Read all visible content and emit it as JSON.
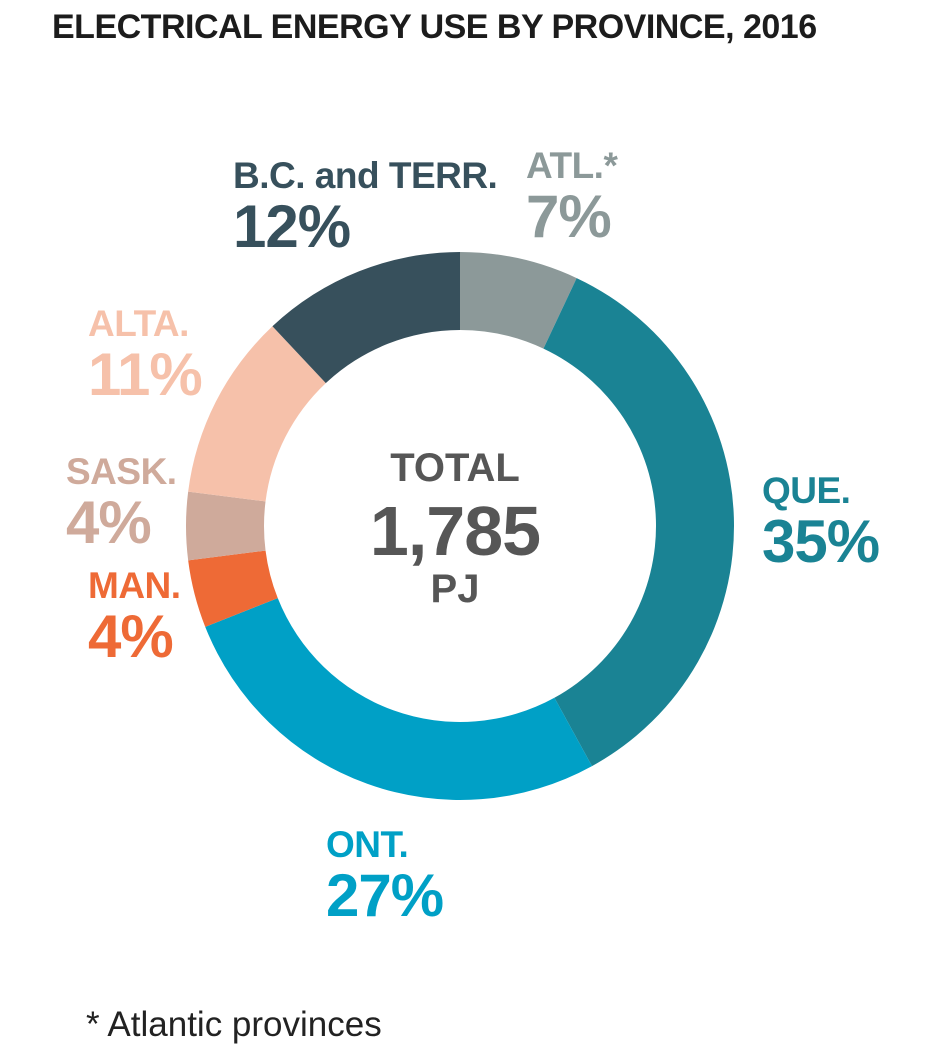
{
  "chart_data": {
    "type": "pie",
    "title": "ELECTRICAL ENERGY USE BY PROVINCE, 2016",
    "center": {
      "label": "TOTAL",
      "value": "1,785",
      "unit": "PJ"
    },
    "slices": [
      {
        "key": "atl",
        "label": "ATL.*",
        "value": 7,
        "value_label": "7%",
        "color": "#8c9999"
      },
      {
        "key": "que",
        "label": "QUE.",
        "value": 35,
        "value_label": "35%",
        "color": "#1a8394"
      },
      {
        "key": "ont",
        "label": "ONT.",
        "value": 27,
        "value_label": "27%",
        "color": "#00a0c6"
      },
      {
        "key": "man",
        "label": "MAN.",
        "value": 4,
        "value_label": "4%",
        "color": "#ee6a36"
      },
      {
        "key": "sask",
        "label": "SASK.",
        "value": 4,
        "value_label": "4%",
        "color": "#cfaa9b"
      },
      {
        "key": "alta",
        "label": "ALTA.",
        "value": 11,
        "value_label": "11%",
        "color": "#f6c1aa"
      },
      {
        "key": "bc",
        "label": "B.C. and TERR.",
        "value": 12,
        "value_label": "12%",
        "color": "#37505c"
      }
    ],
    "footnote": "* Atlantic provinces"
  }
}
